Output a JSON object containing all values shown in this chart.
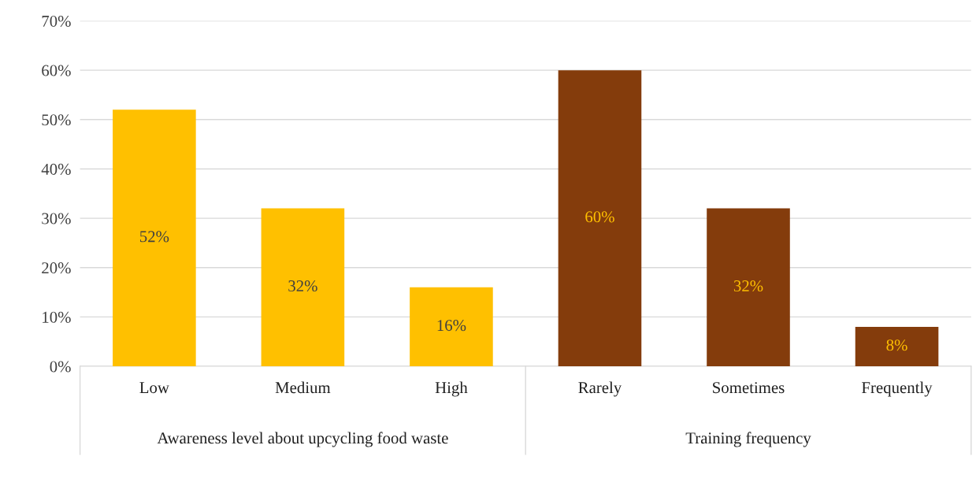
{
  "chart_data": {
    "type": "bar",
    "categories": [
      "Low",
      "Medium",
      "High",
      "Rarely",
      "Sometimes",
      "Frequently"
    ],
    "values": [
      52,
      32,
      16,
      60,
      32,
      8
    ],
    "colors": [
      "#ffc000",
      "#ffc000",
      "#ffc000",
      "#843c0c",
      "#843c0c",
      "#843c0c"
    ],
    "value_labels": [
      "52%",
      "32%",
      "16%",
      "60%",
      "32%",
      "8%"
    ],
    "ylim": [
      0,
      70
    ],
    "yticks": [
      {
        "value": 0,
        "label": "0%"
      },
      {
        "value": 10,
        "label": "10%"
      },
      {
        "value": 20,
        "label": "20%"
      },
      {
        "value": 30,
        "label": "30%"
      },
      {
        "value": 40,
        "label": "40%"
      },
      {
        "value": 50,
        "label": "50%"
      },
      {
        "value": 60,
        "label": "60%"
      },
      {
        "value": 70,
        "label": "70%"
      }
    ],
    "grid": "y",
    "annotations": [
      "Awareness level about upcycling food waste",
      "Training frequency"
    ]
  }
}
